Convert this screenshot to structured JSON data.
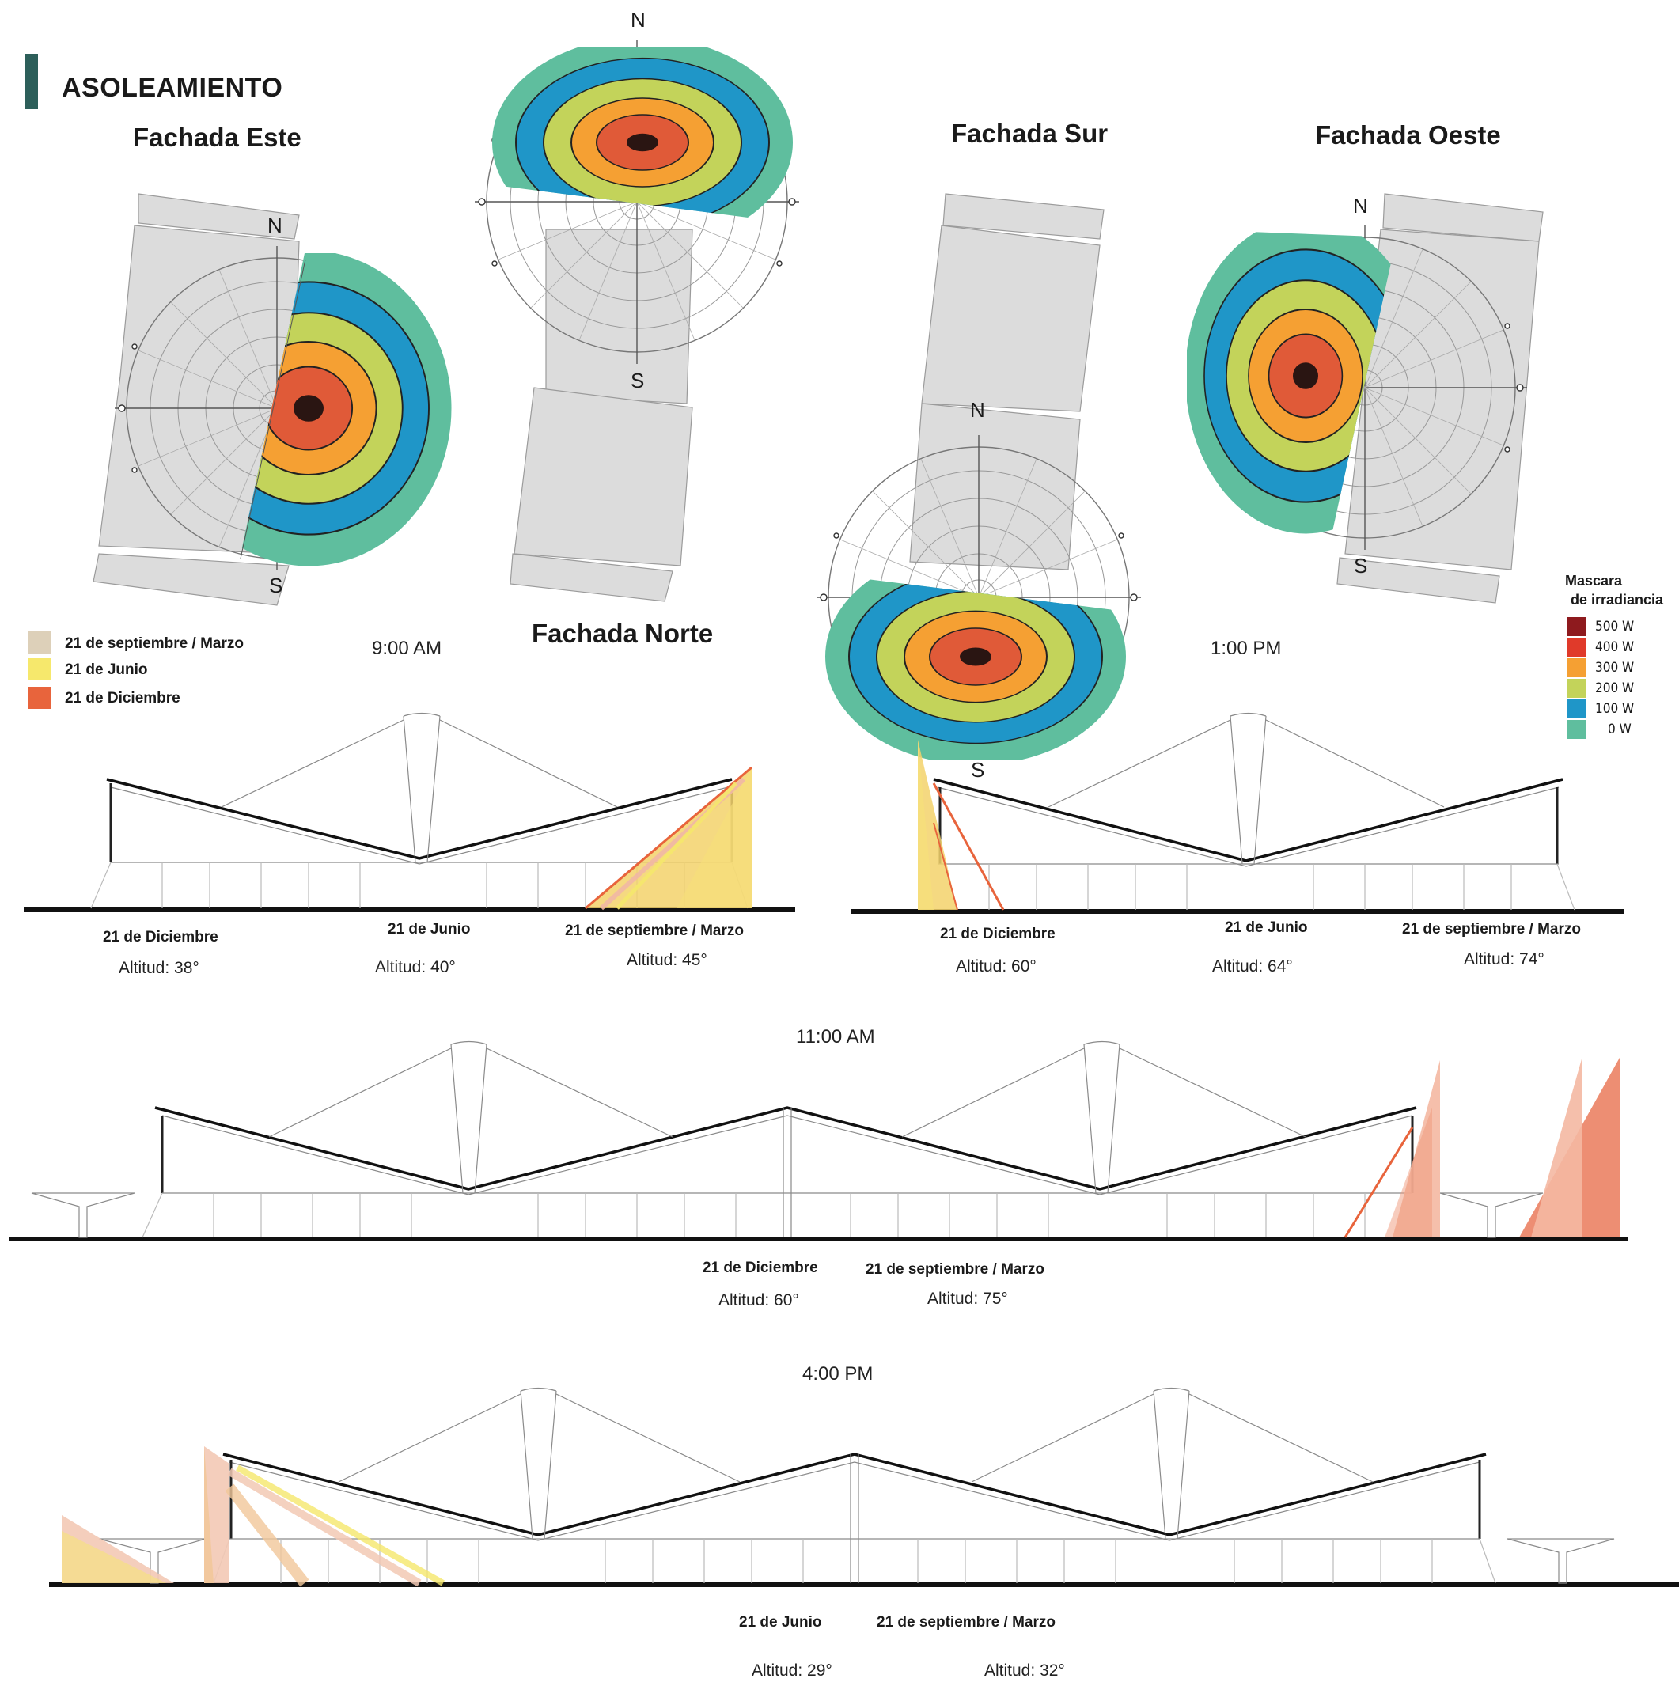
{
  "header": {
    "title": "ASOLEAMIENTO",
    "accent_color": "#2d5f5a"
  },
  "facades": {
    "este": "Fachada Este",
    "norte": "Fachada Norte",
    "sur": "Fachada Sur",
    "oeste": "Fachada Oeste"
  },
  "compass": {
    "north": "N",
    "south": "S"
  },
  "legend_dates": [
    {
      "label": "21 de septiembre / Marzo",
      "color": "#ddd0b9"
    },
    {
      "label": "21 de Junio",
      "color": "#f6e86c"
    },
    {
      "label": "21 de Diciembre",
      "color": "#e8643c"
    }
  ],
  "irradiance_legend": {
    "title_line1": "Mascara",
    "title_line2": "de irradiancia",
    "items": [
      {
        "label": "500 W",
        "color": "#8e1a1e"
      },
      {
        "label": "400 W",
        "color": "#e03a2a"
      },
      {
        "label": "300 W",
        "color": "#f5a033"
      },
      {
        "label": "200 W",
        "color": "#c3d35a"
      },
      {
        "label": "100 W",
        "color": "#1f96c8"
      },
      {
        "label": "0 W",
        "color": "#5fbe9e"
      }
    ]
  },
  "sections": {
    "am9": {
      "time": "9:00 AM",
      "captions": [
        {
          "date": "21 de Diciembre",
          "altitude": "Altitud: 38°"
        },
        {
          "date": "21 de Junio",
          "altitude": "Altitud: 40°"
        },
        {
          "date": "21 de septiembre / Marzo",
          "altitude": "Altitud: 45°"
        }
      ]
    },
    "pm1": {
      "time": "1:00 PM",
      "captions": [
        {
          "date": "21 de Diciembre",
          "altitude": "Altitud: 60°"
        },
        {
          "date": "21 de Junio",
          "altitude": "Altitud: 64°"
        },
        {
          "date": "21 de septiembre / Marzo",
          "altitude": "Altitud: 74°"
        }
      ]
    },
    "am11": {
      "time": "11:00 AM",
      "captions": [
        {
          "date": "21 de Diciembre",
          "altitude": "Altitud: 60°"
        },
        {
          "date": "21 de septiembre / Marzo",
          "altitude": "Altitud: 75°"
        }
      ]
    },
    "pm4": {
      "time": "4:00 PM",
      "captions": [
        {
          "date": "21 de Junio",
          "altitude": "Altitud: 29°"
        },
        {
          "date": "21 de septiembre / Marzo",
          "altitude": "Altitud: 32°"
        }
      ]
    }
  }
}
